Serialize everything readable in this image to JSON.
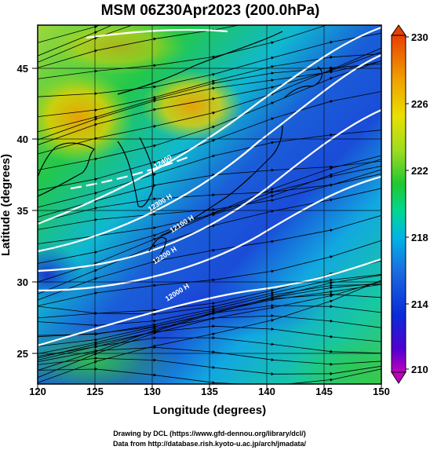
{
  "title": "MSM 06Z30Apr2023 (200.0hPa)",
  "x_axis": {
    "label": "Longitude (degrees)",
    "ticks": [
      "120",
      "125",
      "130",
      "135",
      "140",
      "145",
      "150"
    ],
    "range": [
      120,
      150
    ]
  },
  "y_axis": {
    "label": "Latitude  (degrees)",
    "ticks": [
      "25",
      "30",
      "35",
      "40",
      "45"
    ],
    "range": [
      22.4,
      47.6
    ]
  },
  "colorbar": {
    "ticks": [
      "230",
      "226",
      "222",
      "218",
      "214",
      "210"
    ],
    "range": [
      210,
      230
    ],
    "colors": [
      "#c000c0",
      "#5000d0",
      "#0a2ad8",
      "#1a6ce0",
      "#00b4e6",
      "#00d890",
      "#20c830",
      "#a0dc20",
      "#e8e000",
      "#f0a000",
      "#e84000"
    ]
  },
  "contour_labels": [
    {
      "text": "12400",
      "lon": 130.3,
      "lat": 37.5
    },
    {
      "text": "12300 H",
      "lon": 129.8,
      "lat": 34.5
    },
    {
      "text": "12100 H",
      "lon": 131.7,
      "lat": 33.0
    },
    {
      "text": "12200 H",
      "lon": 130.2,
      "lat": 30.8
    },
    {
      "text": "12000 H",
      "lon": 131.3,
      "lat": 28.2
    }
  ],
  "credits": {
    "line1": "Drawing by DCL (https://www.gfd-dennou.org/library/dcl/)",
    "line2": "Data from http://database.rish.kyoto-u.ac.jp/arch/jmadata/"
  }
}
